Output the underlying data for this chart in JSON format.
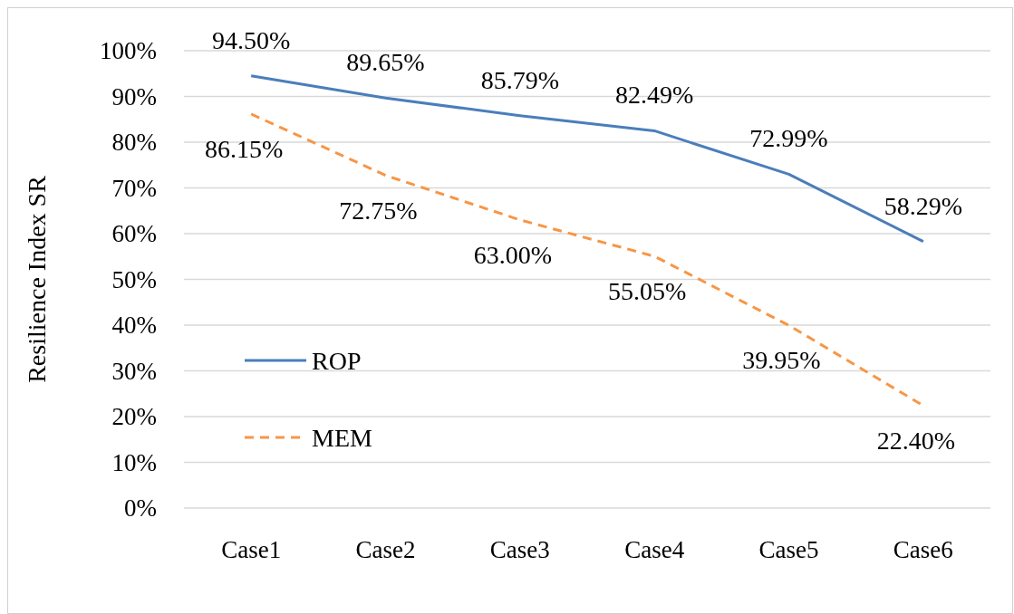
{
  "chart_data": {
    "type": "line",
    "ylabel": "Resilience Index SR",
    "categories": [
      "Case1",
      "Case2",
      "Case3",
      "Case4",
      "Case5",
      "Case6"
    ],
    "series": [
      {
        "name": "ROP",
        "color": "#4a7ebb",
        "line_style": "solid",
        "values": [
          94.5,
          89.65,
          85.79,
          82.49,
          72.99,
          58.29
        ],
        "value_labels": [
          "94.50%",
          "89.65%",
          "85.79%",
          "82.49%",
          "72.99%",
          "58.29%"
        ]
      },
      {
        "name": "MEM",
        "color": "#f79646",
        "line_style": "dashed",
        "values": [
          86.15,
          72.75,
          63.0,
          55.05,
          39.95,
          22.4
        ],
        "value_labels": [
          "86.15%",
          "72.75%",
          "63.00%",
          "55.05%",
          "39.95%",
          "22.40%"
        ]
      }
    ],
    "ylim": [
      0,
      100
    ],
    "yticks": [
      {
        "value": 0,
        "label": "0%"
      },
      {
        "value": 10,
        "label": "10%"
      },
      {
        "value": 20,
        "label": "20%"
      },
      {
        "value": 30,
        "label": "30%"
      },
      {
        "value": 40,
        "label": "40%"
      },
      {
        "value": 50,
        "label": "50%"
      },
      {
        "value": 60,
        "label": "60%"
      },
      {
        "value": 70,
        "label": "70%"
      },
      {
        "value": 80,
        "label": "80%"
      },
      {
        "value": 90,
        "label": "90%"
      },
      {
        "value": 100,
        "label": "100%"
      }
    ],
    "grid": "y",
    "legend": "left"
  }
}
